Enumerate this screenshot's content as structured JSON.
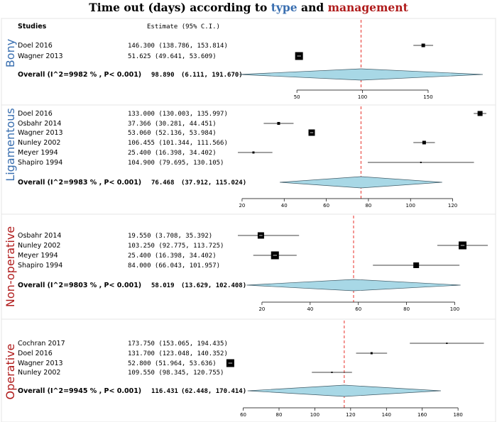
{
  "header": {
    "title_pre": "Time out (days)  according to ",
    "title_type": "type",
    "title_mid": " and ",
    "title_mgmt": "management"
  },
  "columns": {
    "studies": "Studies",
    "estimate": "Estimate (95% C.I.)"
  },
  "colors": {
    "type_blue": "#3a6fb0",
    "mgmt_red": "#b01c1c",
    "diamond_fill": "#a8d8e6",
    "ref_line": "#e8312a"
  },
  "chart_data": [
    {
      "type": "forest",
      "panel": "Bony",
      "panel_color": "#3a6fb0",
      "xlim": [
        5,
        196
      ],
      "ticks": [
        50,
        100,
        150
      ],
      "ref_line": 98.89,
      "studies": [
        {
          "name": "Doel 2016",
          "est": 146.3,
          "lo": 138.786,
          "hi": 153.814,
          "size": 5,
          "text": "146.300 (138.786, 153.814)"
        },
        {
          "name": "Wagner 2013",
          "est": 51.625,
          "lo": 49.641,
          "hi": 53.609,
          "size": 11,
          "text": " 51.625  (49.641,  53.609)"
        }
      ],
      "overall": {
        "label": "Overall (I^2=9982 % , P< 0.001)",
        "est": 98.89,
        "lo": 6.111,
        "hi": 191.67,
        "est_text": "98.890",
        "ci_text": "(6.111, 191.670)"
      }
    },
    {
      "type": "forest",
      "panel": "Ligamentous",
      "panel_color": "#3a6fb0",
      "xlim": [
        18,
        137
      ],
      "ticks": [
        20,
        40,
        60,
        80,
        100,
        120
      ],
      "ref_line": 76.468,
      "studies": [
        {
          "name": "Doel 2016",
          "est": 133.0,
          "lo": 130.003,
          "hi": 135.997,
          "size": 7,
          "text": "133.000 (130.003, 135.997)"
        },
        {
          "name": "Osbahr 2014",
          "est": 37.366,
          "lo": 30.281,
          "hi": 44.451,
          "size": 4,
          "text": " 37.366  (30.281,  44.451)"
        },
        {
          "name": "Wagner 2013",
          "est": 53.06,
          "lo": 52.136,
          "hi": 53.984,
          "size": 9,
          "text": " 53.060  (52.136,  53.984)"
        },
        {
          "name": "Nunley 2002",
          "est": 106.455,
          "lo": 101.344,
          "hi": 111.566,
          "size": 5,
          "text": "106.455 (101.344, 111.566)"
        },
        {
          "name": "Meyer 1994",
          "est": 25.4,
          "lo": 16.398,
          "hi": 34.402,
          "size": 3,
          "text": " 25.400  (16.398,  34.402)"
        },
        {
          "name": "Shapiro 1994",
          "est": 104.9,
          "lo": 79.695,
          "hi": 130.105,
          "size": 2,
          "text": "104.900  (79.695, 130.105)"
        }
      ],
      "overall": {
        "label": "Overall (I^2=9983 % , P< 0.001)",
        "est": 76.468,
        "lo": 37.912,
        "hi": 115.024,
        "est_text": "76.468",
        "ci_text": "(37.912, 115.024)"
      }
    },
    {
      "type": "forest",
      "panel": "Non-operative",
      "panel_color": "#b01c1c",
      "xlim": [
        10,
        114
      ],
      "ticks": [
        20,
        40,
        60,
        80,
        100
      ],
      "ref_line": 58.019,
      "studies": [
        {
          "name": "Osbahr 2014",
          "est": 19.55,
          "lo": 3.708,
          "hi": 35.392,
          "size": 9,
          "text": " 19.550   (3.708,  35.392)"
        },
        {
          "name": "Nunley 2002",
          "est": 103.25,
          "lo": 92.775,
          "hi": 113.725,
          "size": 11,
          "text": "103.250  (92.775, 113.725)"
        },
        {
          "name": "Meyer 1994",
          "est": 25.4,
          "lo": 16.398,
          "hi": 34.402,
          "size": 11,
          "text": " 25.400  (16.398,  34.402)"
        },
        {
          "name": "Shapiro 1994",
          "est": 84.0,
          "lo": 66.043,
          "hi": 101.957,
          "size": 8,
          "text": " 84.000  (66.043, 101.957)"
        }
      ],
      "overall": {
        "label": "Overall (I^2=9803 % , P< 0.001)",
        "est": 58.019,
        "lo": 13.629,
        "hi": 102.408,
        "est_text": "58.019",
        "ci_text": "(13.629, 102.408)"
      }
    },
    {
      "type": "forest",
      "panel": "Operative",
      "panel_color": "#b01c1c",
      "xlim": [
        57,
        197
      ],
      "ticks": [
        60,
        80,
        100,
        120,
        140,
        160,
        180
      ],
      "ref_line": 116.431,
      "studies": [
        {
          "name": "Cochran 2017",
          "est": 173.75,
          "lo": 153.065,
          "hi": 194.435,
          "size": 2,
          "text": "173.750 (153.065, 194.435)"
        },
        {
          "name": "Doel 2016",
          "est": 131.7,
          "lo": 123.048,
          "hi": 140.352,
          "size": 3,
          "text": "131.700 (123.048, 140.352)"
        },
        {
          "name": "Wagner 2013",
          "est": 52.8,
          "lo": 51.964,
          "hi": 53.636,
          "size": 11,
          "text": " 52.800  (51.964,  53.636)"
        },
        {
          "name": "Nunley 2002",
          "est": 109.55,
          "lo": 98.345,
          "hi": 120.755,
          "size": 2,
          "text": "109.550  (98.345, 120.755)"
        }
      ],
      "overall": {
        "label": "Overall (I^2=9945 % , P< 0.001)",
        "est": 116.431,
        "lo": 62.448,
        "hi": 170.414,
        "est_text": "116.431",
        "ci_text": "(62.448, 170.414)"
      }
    }
  ]
}
